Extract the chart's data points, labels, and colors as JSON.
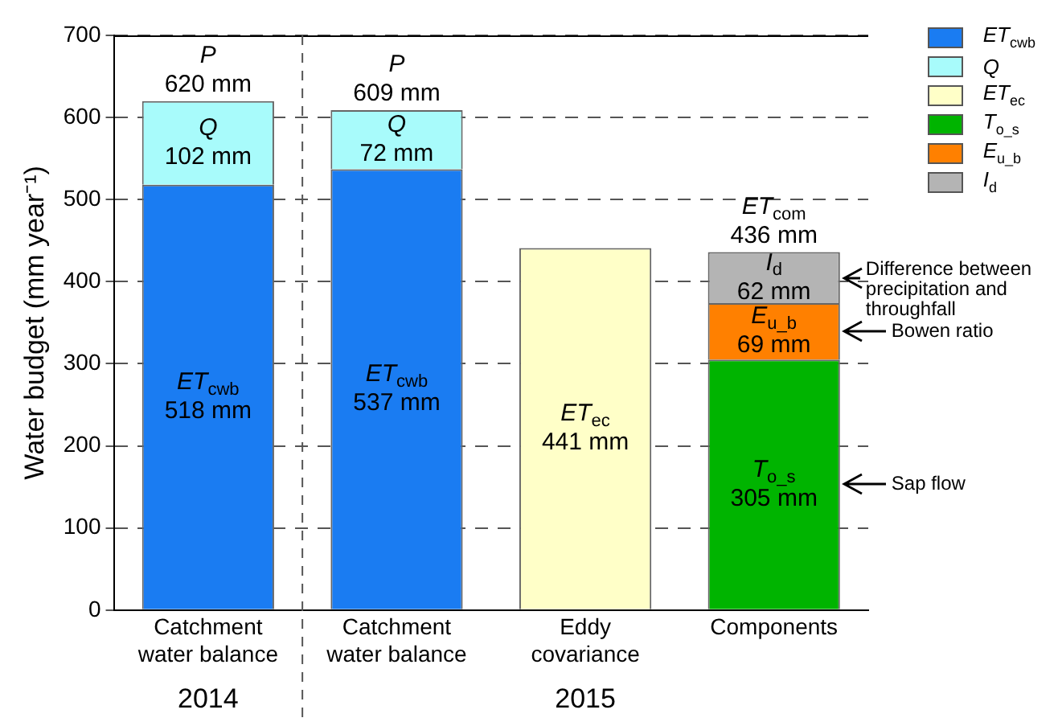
{
  "chart_data": {
    "type": "bar",
    "stacked": true,
    "ylabel": "Water budget (mm year⁻¹)",
    "categories": [
      "Catchment water balance",
      "Catchment water balance",
      "Eddy covariance",
      "Components"
    ],
    "series": [
      {
        "name": "ET$_{cwb}$",
        "color": "#1a7cf2",
        "values": [
          518,
          537,
          null,
          null
        ],
        "value_labels": [
          "ET$_{cwb}$ 518 mm",
          "ET$_{cwb}$ 537 mm",
          null,
          null
        ]
      },
      {
        "name": "Q",
        "color": "#a8fbfb",
        "values": [
          102,
          72,
          null,
          null
        ],
        "value_labels": [
          "Q 102 mm",
          "Q 72 mm",
          null,
          null
        ]
      },
      {
        "name": "ET$_{ec}$",
        "color": "#ffffc8",
        "values": [
          null,
          null,
          441,
          null
        ],
        "value_labels": [
          null,
          null,
          "ET$_{ec}$ 441 mm",
          null
        ]
      },
      {
        "name": "T$_{o_s}$",
        "color": "#00b400",
        "values": [
          null,
          null,
          null,
          305
        ],
        "value_labels": [
          null,
          null,
          null,
          "T$_{o_s}$ 305 mm"
        ]
      },
      {
        "name": "E$_{u_b}$",
        "color": "#ff8000",
        "values": [
          null,
          null,
          null,
          69
        ],
        "value_labels": [
          null,
          null,
          null,
          "E$_{u_b}$ 69 mm"
        ]
      },
      {
        "name": "I$_{d}$",
        "color": "#b4b4b4",
        "values": [
          null,
          null,
          null,
          62
        ],
        "value_labels": [
          null,
          null,
          null,
          "I$_{d}$ 62 mm"
        ]
      }
    ],
    "totals": [
      "P 620 mm",
      "P 609 mm",
      null,
      "ET$_{com}$ 436 mm"
    ],
    "annotations": [
      "2014",
      "2015",
      "Difference between precipitation and throughfall",
      "Bowen ratio",
      "Sap flow"
    ],
    "ylim": [
      0,
      700
    ],
    "yticks": [
      0,
      100,
      200,
      300,
      400,
      500,
      600,
      700
    ],
    "grid": "y",
    "legend": "top right"
  }
}
